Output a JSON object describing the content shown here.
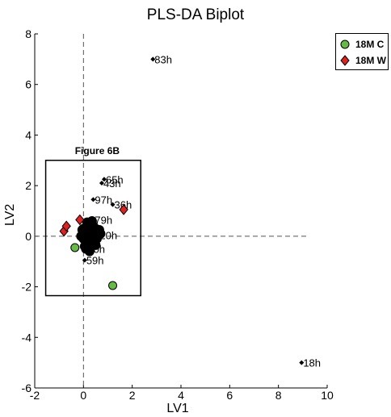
{
  "chart_data": {
    "type": "scatter",
    "title": "PLS-DA Biplot",
    "xlabel": "LV1",
    "ylabel": "LV2",
    "xlim": [
      -2,
      10
    ],
    "ylim": [
      -6,
      8
    ],
    "x_ticks": [
      -2,
      0,
      2,
      4,
      6,
      8,
      10
    ],
    "y_ticks": [
      -6,
      -4,
      -2,
      0,
      2,
      4,
      6,
      8
    ],
    "grid": false,
    "legend_position": "top-right",
    "annotation": {
      "text": "Figure 6B",
      "box_x": [
        -1.55,
        2.35
      ],
      "box_y": [
        -2.35,
        3.0
      ]
    },
    "series": [
      {
        "name": "18M C",
        "marker": "circle",
        "color": "#66bb44",
        "x": [
          -0.35,
          1.2
        ],
        "y": [
          -0.45,
          -1.95
        ]
      },
      {
        "name": "18M W",
        "marker": "diamond",
        "color": "#dd2222",
        "x": [
          -0.8,
          -0.7,
          -0.15,
          1.65
        ],
        "y": [
          0.2,
          0.4,
          0.65,
          1.05
        ]
      }
    ],
    "variables": {
      "labels": [
        "83h",
        "18h",
        "65h",
        "43h",
        "97h",
        "36h",
        "79h",
        "20h",
        "59h",
        "70h"
      ],
      "x": [
        2.85,
        8.95,
        0.85,
        0.75,
        0.4,
        1.2,
        0.4,
        0.6,
        0.05,
        0.1
      ],
      "y": [
        7.0,
        -5.0,
        2.25,
        2.1,
        1.45,
        1.25,
        0.65,
        0.05,
        -0.95,
        -0.5
      ]
    },
    "cluster_points": {
      "x": [
        -0.1,
        0.0,
        0.1,
        0.2,
        0.3,
        0.4,
        0.5,
        0.6,
        0.7,
        -0.05,
        0.15,
        0.25,
        0.35,
        0.45,
        0.55,
        0.65,
        0.05,
        0.2,
        0.3,
        0.4,
        0.5,
        0.1,
        0.25,
        0.35,
        0.15,
        0.3,
        0.45,
        0.0,
        0.2,
        0.5
      ],
      "y": [
        0.0,
        -0.1,
        0.1,
        -0.2,
        0.15,
        -0.05,
        0.2,
        0.05,
        0.1,
        0.25,
        0.3,
        -0.3,
        0.35,
        -0.15,
        -0.1,
        0.25,
        -0.4,
        0.45,
        0.5,
        0.4,
        0.3,
        -0.5,
        -0.6,
        0.6,
        0.55,
        -0.25,
        0.0,
        0.3,
        0.1,
        -0.35
      ]
    }
  }
}
